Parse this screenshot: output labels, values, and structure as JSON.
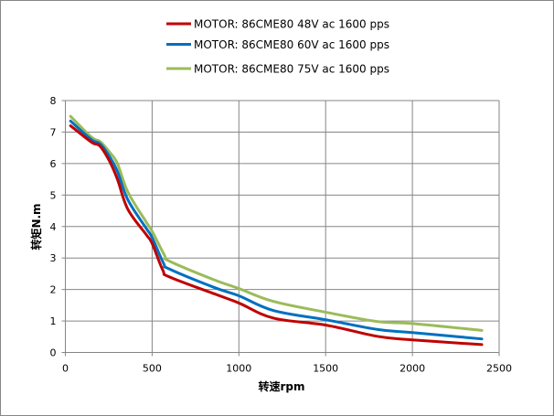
{
  "chart_data": {
    "type": "line",
    "title": "",
    "xlabel": "转速rpm",
    "ylabel": "转矩N.m",
    "xlim": [
      0,
      2500
    ],
    "ylim": [
      0,
      8
    ],
    "xticks": [
      0,
      500,
      1000,
      1500,
      2000,
      2500
    ],
    "yticks": [
      0,
      1,
      2,
      3,
      4,
      5,
      6,
      7,
      8
    ],
    "grid": true,
    "legend_position": "top",
    "series": [
      {
        "name": "MOTOR: 86CME80 48V ac 1600 pps",
        "color": "#C00000",
        "x": [
          30,
          150,
          200,
          255,
          300,
          360,
          465,
          500,
          562,
          600,
          860,
          1000,
          1200,
          1500,
          1800,
          2000,
          2400
        ],
        "y": [
          7.2,
          6.68,
          6.55,
          6.07,
          5.5,
          4.55,
          3.75,
          3.46,
          2.61,
          2.4,
          1.86,
          1.57,
          1.09,
          0.87,
          0.51,
          0.4,
          0.25
        ]
      },
      {
        "name": "MOTOR: 86CME80 60V ac 1600 pps",
        "color": "#0070C0",
        "x": [
          30,
          150,
          200,
          255,
          300,
          360,
          465,
          500,
          566,
          600,
          860,
          1000,
          1200,
          1500,
          1800,
          2000,
          2400
        ],
        "y": [
          7.35,
          6.76,
          6.63,
          6.22,
          5.75,
          4.85,
          3.95,
          3.65,
          2.83,
          2.65,
          2.06,
          1.8,
          1.33,
          1.04,
          0.73,
          0.63,
          0.43
        ]
      },
      {
        "name": "MOTOR: 86CME80 75V ac 1600 pps",
        "color": "#9BBB59",
        "x": [
          30,
          150,
          200,
          255,
          300,
          360,
          465,
          500,
          571,
          600,
          860,
          1000,
          1200,
          1500,
          1800,
          2000,
          2400
        ],
        "y": [
          7.5,
          6.84,
          6.7,
          6.36,
          6.0,
          5.1,
          4.15,
          3.85,
          3.09,
          2.9,
          2.3,
          2.03,
          1.62,
          1.28,
          0.98,
          0.92,
          0.7
        ]
      }
    ]
  }
}
